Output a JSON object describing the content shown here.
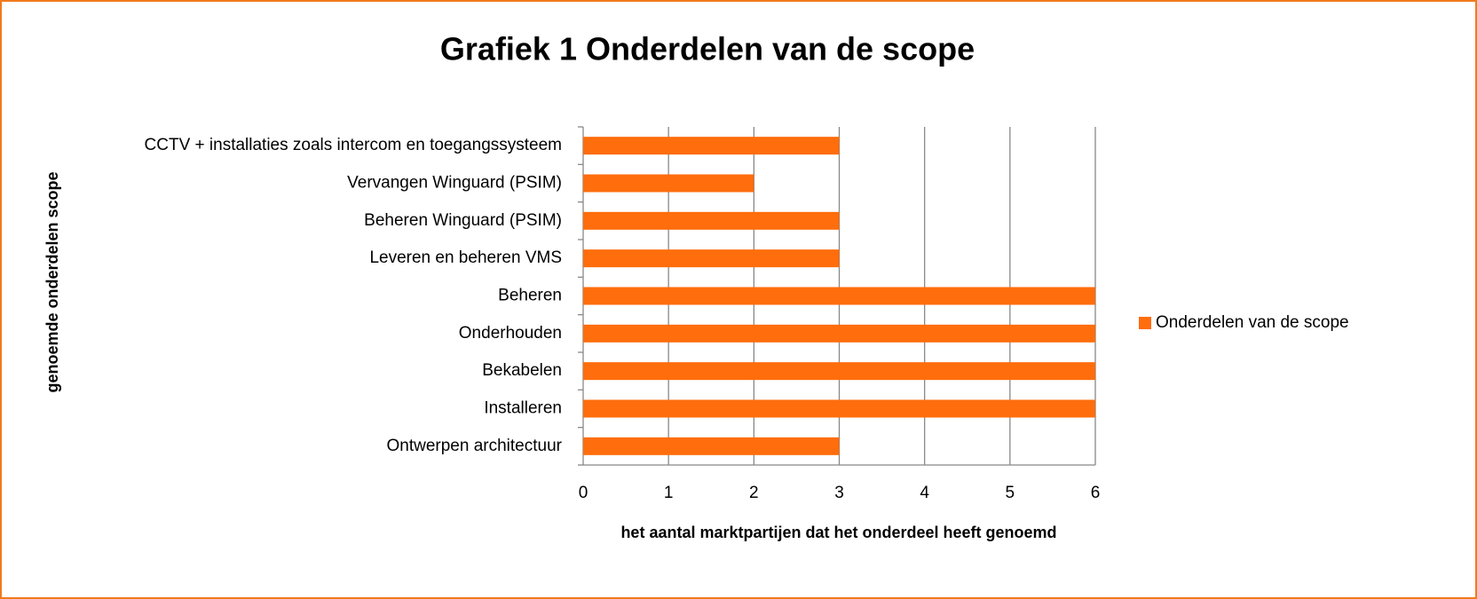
{
  "chart_data": {
    "type": "hbar",
    "title": "Grafiek 1 Onderdelen van de scope",
    "x_label": "het aantal marktpartijen dat het onderdeel heeft genoemd",
    "y_label": "genoemde onderdelen scope",
    "categories": [
      "CCTV + installaties zoals intercom en toegangssysteem",
      "Vervangen Winguard (PSIM)",
      "Beheren Winguard (PSIM)",
      "Leveren en beheren VMS",
      "Beheren",
      "Onderhouden",
      "Bekabelen",
      "Installeren",
      "Ontwerpen architectuur"
    ],
    "series": [
      {
        "name": "Onderdelen van de scope",
        "color": "#ff6d0c",
        "values": [
          3,
          2,
          3,
          3,
          6,
          6,
          6,
          6,
          3
        ]
      }
    ],
    "xlim": [
      0,
      6
    ],
    "xticks": [
      0,
      1,
      2,
      3,
      4,
      5,
      6
    ],
    "grid": true,
    "legend": "right"
  }
}
